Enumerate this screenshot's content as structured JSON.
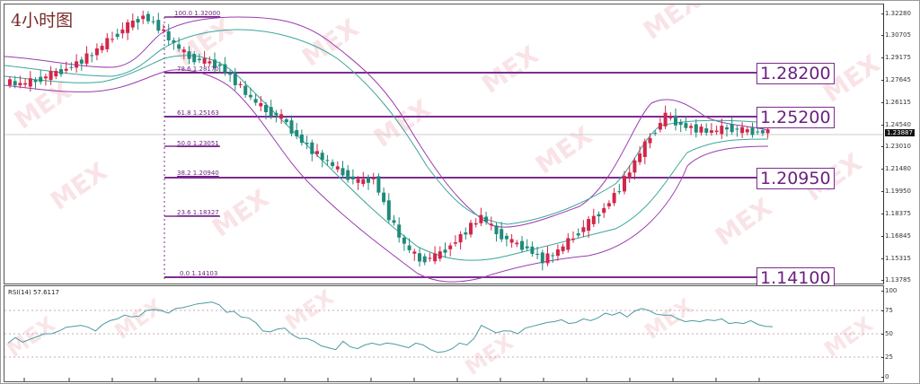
{
  "chart_data": [
    {
      "type": "candlestick",
      "title": "4小时图",
      "subtitle": "",
      "xlabel": "",
      "ylabel": "",
      "ylim": [
        1.13785,
        1.3228
      ],
      "y_ticks": [
        "1.32280",
        "1.30705",
        "1.29175",
        "1.27645",
        "1.26115",
        "1.24540",
        "1.23010",
        "1.21480",
        "1.19950",
        "1.18375",
        "1.16845",
        "1.15315",
        "1.13785"
      ],
      "current_price": "1.23887",
      "indicators": [
        "Bollinger Bands (outer, purple)",
        "Bollinger Bands (inner, teal)"
      ],
      "fibonacci_levels": [
        {
          "pct": "100.0",
          "price": "1.32000"
        },
        {
          "pct": "78.6",
          "price": "1.28170"
        },
        {
          "pct": "61.8",
          "price": "1.25163"
        },
        {
          "pct": "50.0",
          "price": "1.23051"
        },
        {
          "pct": "38.2",
          "price": "1.20940"
        },
        {
          "pct": "23.6",
          "price": "1.18327"
        },
        {
          "pct": "0.0",
          "price": "1.14103"
        }
      ],
      "horizontal_levels": [
        "1.28200",
        "1.25200",
        "1.20950",
        "1.14100"
      ],
      "price_path_approx": [
        1.274,
        1.272,
        1.275,
        1.279,
        1.283,
        1.289,
        1.296,
        1.305,
        1.313,
        1.32,
        1.312,
        1.3,
        1.291,
        1.288,
        1.285,
        1.274,
        1.262,
        1.254,
        1.249,
        1.236,
        1.226,
        1.218,
        1.21,
        1.204,
        1.207,
        1.18,
        1.16,
        1.15,
        1.152,
        1.16,
        1.17,
        1.18,
        1.169,
        1.162,
        1.158,
        1.15,
        1.156,
        1.166,
        1.176,
        1.186,
        1.2,
        1.218,
        1.236,
        1.25,
        1.244,
        1.241,
        1.239,
        1.242,
        1.24,
        1.239,
        1.24,
        1.239
      ]
    },
    {
      "type": "line",
      "title": "RSI(14) 57.6117",
      "ylim": [
        0,
        100
      ],
      "y_ticks": [
        "100",
        "75",
        "50",
        "25",
        "0"
      ],
      "grid_levels": [
        75,
        50,
        25
      ],
      "series": [
        {
          "name": "RSI(14)",
          "values": [
            40,
            46,
            41,
            44,
            47,
            50,
            50,
            53,
            57,
            58,
            59,
            57,
            53,
            60,
            64,
            66,
            70,
            68,
            69,
            75,
            76,
            75,
            72,
            77,
            78,
            80,
            82,
            83,
            84,
            81,
            73,
            74,
            68,
            67,
            62,
            53,
            52,
            55,
            56,
            49,
            45,
            45,
            42,
            37,
            35,
            33,
            42,
            36,
            34,
            38,
            40,
            38,
            40,
            39,
            37,
            35,
            40,
            38,
            33,
            30,
            31,
            34,
            40,
            38,
            45,
            59,
            55,
            51,
            53,
            53,
            50,
            56,
            58,
            60,
            62,
            63,
            65,
            61,
            62,
            66,
            64,
            67,
            72,
            70,
            73,
            68,
            74,
            77,
            75,
            71,
            70,
            70,
            66,
            63,
            64,
            63,
            65,
            64,
            66,
            61,
            62,
            61,
            64,
            60,
            58,
            57.6
          ]
        }
      ]
    }
  ],
  "header": {
    "title": "4小时图"
  },
  "axis": {
    "price_ticks": [
      "1.32280",
      "1.30705",
      "1.29175",
      "1.27645",
      "1.26115",
      "1.24540",
      "1.23010",
      "1.21480",
      "1.19950",
      "1.18375",
      "1.16845",
      "1.15315",
      "1.13785"
    ],
    "current_price": "1.23887",
    "rsi_ticks": [
      "100",
      "75",
      "50",
      "25",
      "0"
    ]
  },
  "fib": {
    "l100": "100.0  1.32000",
    "l786": "78.6  1.28170",
    "l618": "61.8  1.25163",
    "l500": "50.0  1.23051",
    "l382": "38.2  1.20940",
    "l236": "23.6  1.18327",
    "l000": "0.0  1.14103"
  },
  "levels": {
    "r1": "1.28200",
    "r2": "1.25200",
    "s1": "1.20950",
    "s2": "1.14100"
  },
  "rsi": {
    "label": "RSI(14) 57.6117"
  },
  "colors": {
    "bull": "#d2264a",
    "bear": "#1f8a7a",
    "band_outer": "#9b3bb0",
    "band_inner": "#3aa69a",
    "level_line": "#7b2d8e",
    "rsi_line": "#4a9aa0"
  },
  "watermark": "MEX"
}
